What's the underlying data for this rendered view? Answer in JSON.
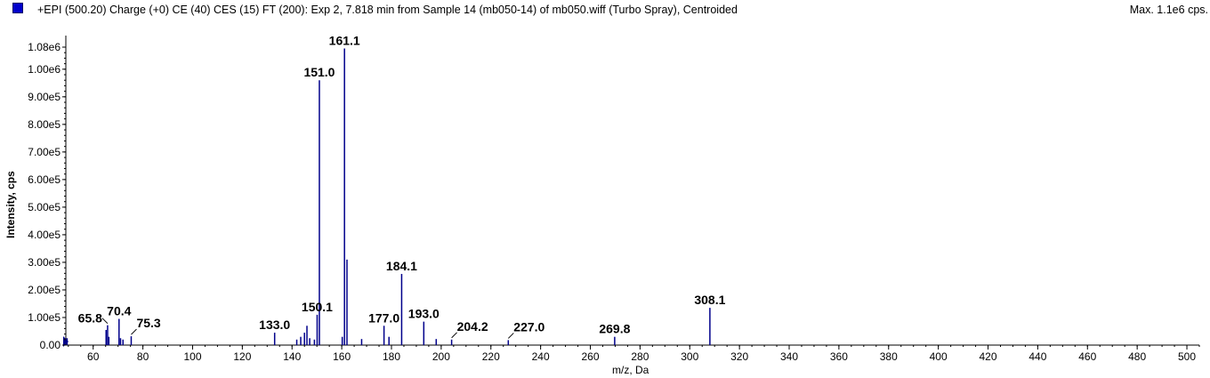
{
  "header": {
    "title": "+EPI (500.20) Charge (+0) CE (40) CES (15) FT (200): Exp 2, 7.818 min from Sample 14 (mb050-14) of mb050.wiff (Turbo Spray), Centroided",
    "max_label": "Max. 1.1e6 cps."
  },
  "colors": {
    "peak": "#00008b",
    "axis": "#000000",
    "swatch": "#0000cc"
  },
  "chart_data": {
    "type": "bar",
    "title": "+EPI (500.20) Charge (+0) CE (40) CES (15) FT (200): Exp 2, 7.818 min from Sample 14 (mb050-14) of mb050.wiff (Turbo Spray), Centroided",
    "xlabel": "m/z, Da",
    "ylabel": "Intensity, cps",
    "xlim": [
      49,
      505
    ],
    "ylim": [
      0,
      1080000.0
    ],
    "grid": false,
    "x_ticks": [
      "60",
      "80",
      "100",
      "120",
      "140",
      "160",
      "180",
      "200",
      "220",
      "240",
      "260",
      "280",
      "300",
      "320",
      "340",
      "360",
      "380",
      "400",
      "420",
      "440",
      "460",
      "480",
      "500"
    ],
    "y_ticks": [
      "0.00",
      "1.00e5",
      "2.00e5",
      "3.00e5",
      "4.00e5",
      "5.00e5",
      "6.00e5",
      "7.00e5",
      "8.00e5",
      "9.00e5",
      "1.00e6",
      "1.08e6"
    ],
    "peaks": [
      {
        "x": 49.5,
        "y": 25000
      },
      {
        "x": 65.2,
        "y": 55000
      },
      {
        "x": 65.8,
        "y": 72000
      },
      {
        "x": 66.3,
        "y": 30000
      },
      {
        "x": 70.4,
        "y": 95000
      },
      {
        "x": 71.0,
        "y": 25000
      },
      {
        "x": 72.0,
        "y": 20000
      },
      {
        "x": 75.3,
        "y": 32000
      },
      {
        "x": 133.0,
        "y": 45000
      },
      {
        "x": 141.9,
        "y": 20000
      },
      {
        "x": 143.5,
        "y": 30000
      },
      {
        "x": 145.0,
        "y": 45000
      },
      {
        "x": 146.0,
        "y": 70000
      },
      {
        "x": 147.1,
        "y": 25000
      },
      {
        "x": 149.0,
        "y": 20000
      },
      {
        "x": 150.1,
        "y": 110000
      },
      {
        "x": 151.0,
        "y": 960000
      },
      {
        "x": 160.2,
        "y": 30000
      },
      {
        "x": 161.1,
        "y": 1075000
      },
      {
        "x": 162.1,
        "y": 310000
      },
      {
        "x": 168.0,
        "y": 22000
      },
      {
        "x": 177.0,
        "y": 70000
      },
      {
        "x": 179.0,
        "y": 30000
      },
      {
        "x": 184.1,
        "y": 258000
      },
      {
        "x": 193.0,
        "y": 85000
      },
      {
        "x": 198.0,
        "y": 22000
      },
      {
        "x": 204.2,
        "y": 20000
      },
      {
        "x": 227.0,
        "y": 18000
      },
      {
        "x": 269.8,
        "y": 30000
      },
      {
        "x": 308.1,
        "y": 135000
      }
    ],
    "annotations": [
      {
        "text": "65.8",
        "x": 65.8,
        "y": 72000,
        "leader": true
      },
      {
        "text": "70.4",
        "x": 70.4,
        "y": 95000,
        "leader": false
      },
      {
        "text": "75.3",
        "x": 75.3,
        "y": 32000,
        "leader": true
      },
      {
        "text": "133.0",
        "x": 133.0,
        "y": 45000,
        "leader": false
      },
      {
        "text": "150.1",
        "x": 150.1,
        "y": 110000,
        "leader": false
      },
      {
        "text": "151.0",
        "x": 151.0,
        "y": 960000,
        "leader": false
      },
      {
        "text": "161.1",
        "x": 161.1,
        "y": 1075000,
        "leader": false
      },
      {
        "text": "177.0",
        "x": 177.0,
        "y": 70000,
        "leader": false
      },
      {
        "text": "184.1",
        "x": 184.1,
        "y": 258000,
        "leader": false
      },
      {
        "text": "193.0",
        "x": 193.0,
        "y": 85000,
        "leader": false
      },
      {
        "text": "204.2",
        "x": 204.2,
        "y": 20000,
        "leader": true
      },
      {
        "text": "227.0",
        "x": 227.0,
        "y": 18000,
        "leader": true
      },
      {
        "text": "269.8",
        "x": 269.8,
        "y": 30000,
        "leader": false
      },
      {
        "text": "308.1",
        "x": 308.1,
        "y": 135000,
        "leader": false
      }
    ]
  }
}
